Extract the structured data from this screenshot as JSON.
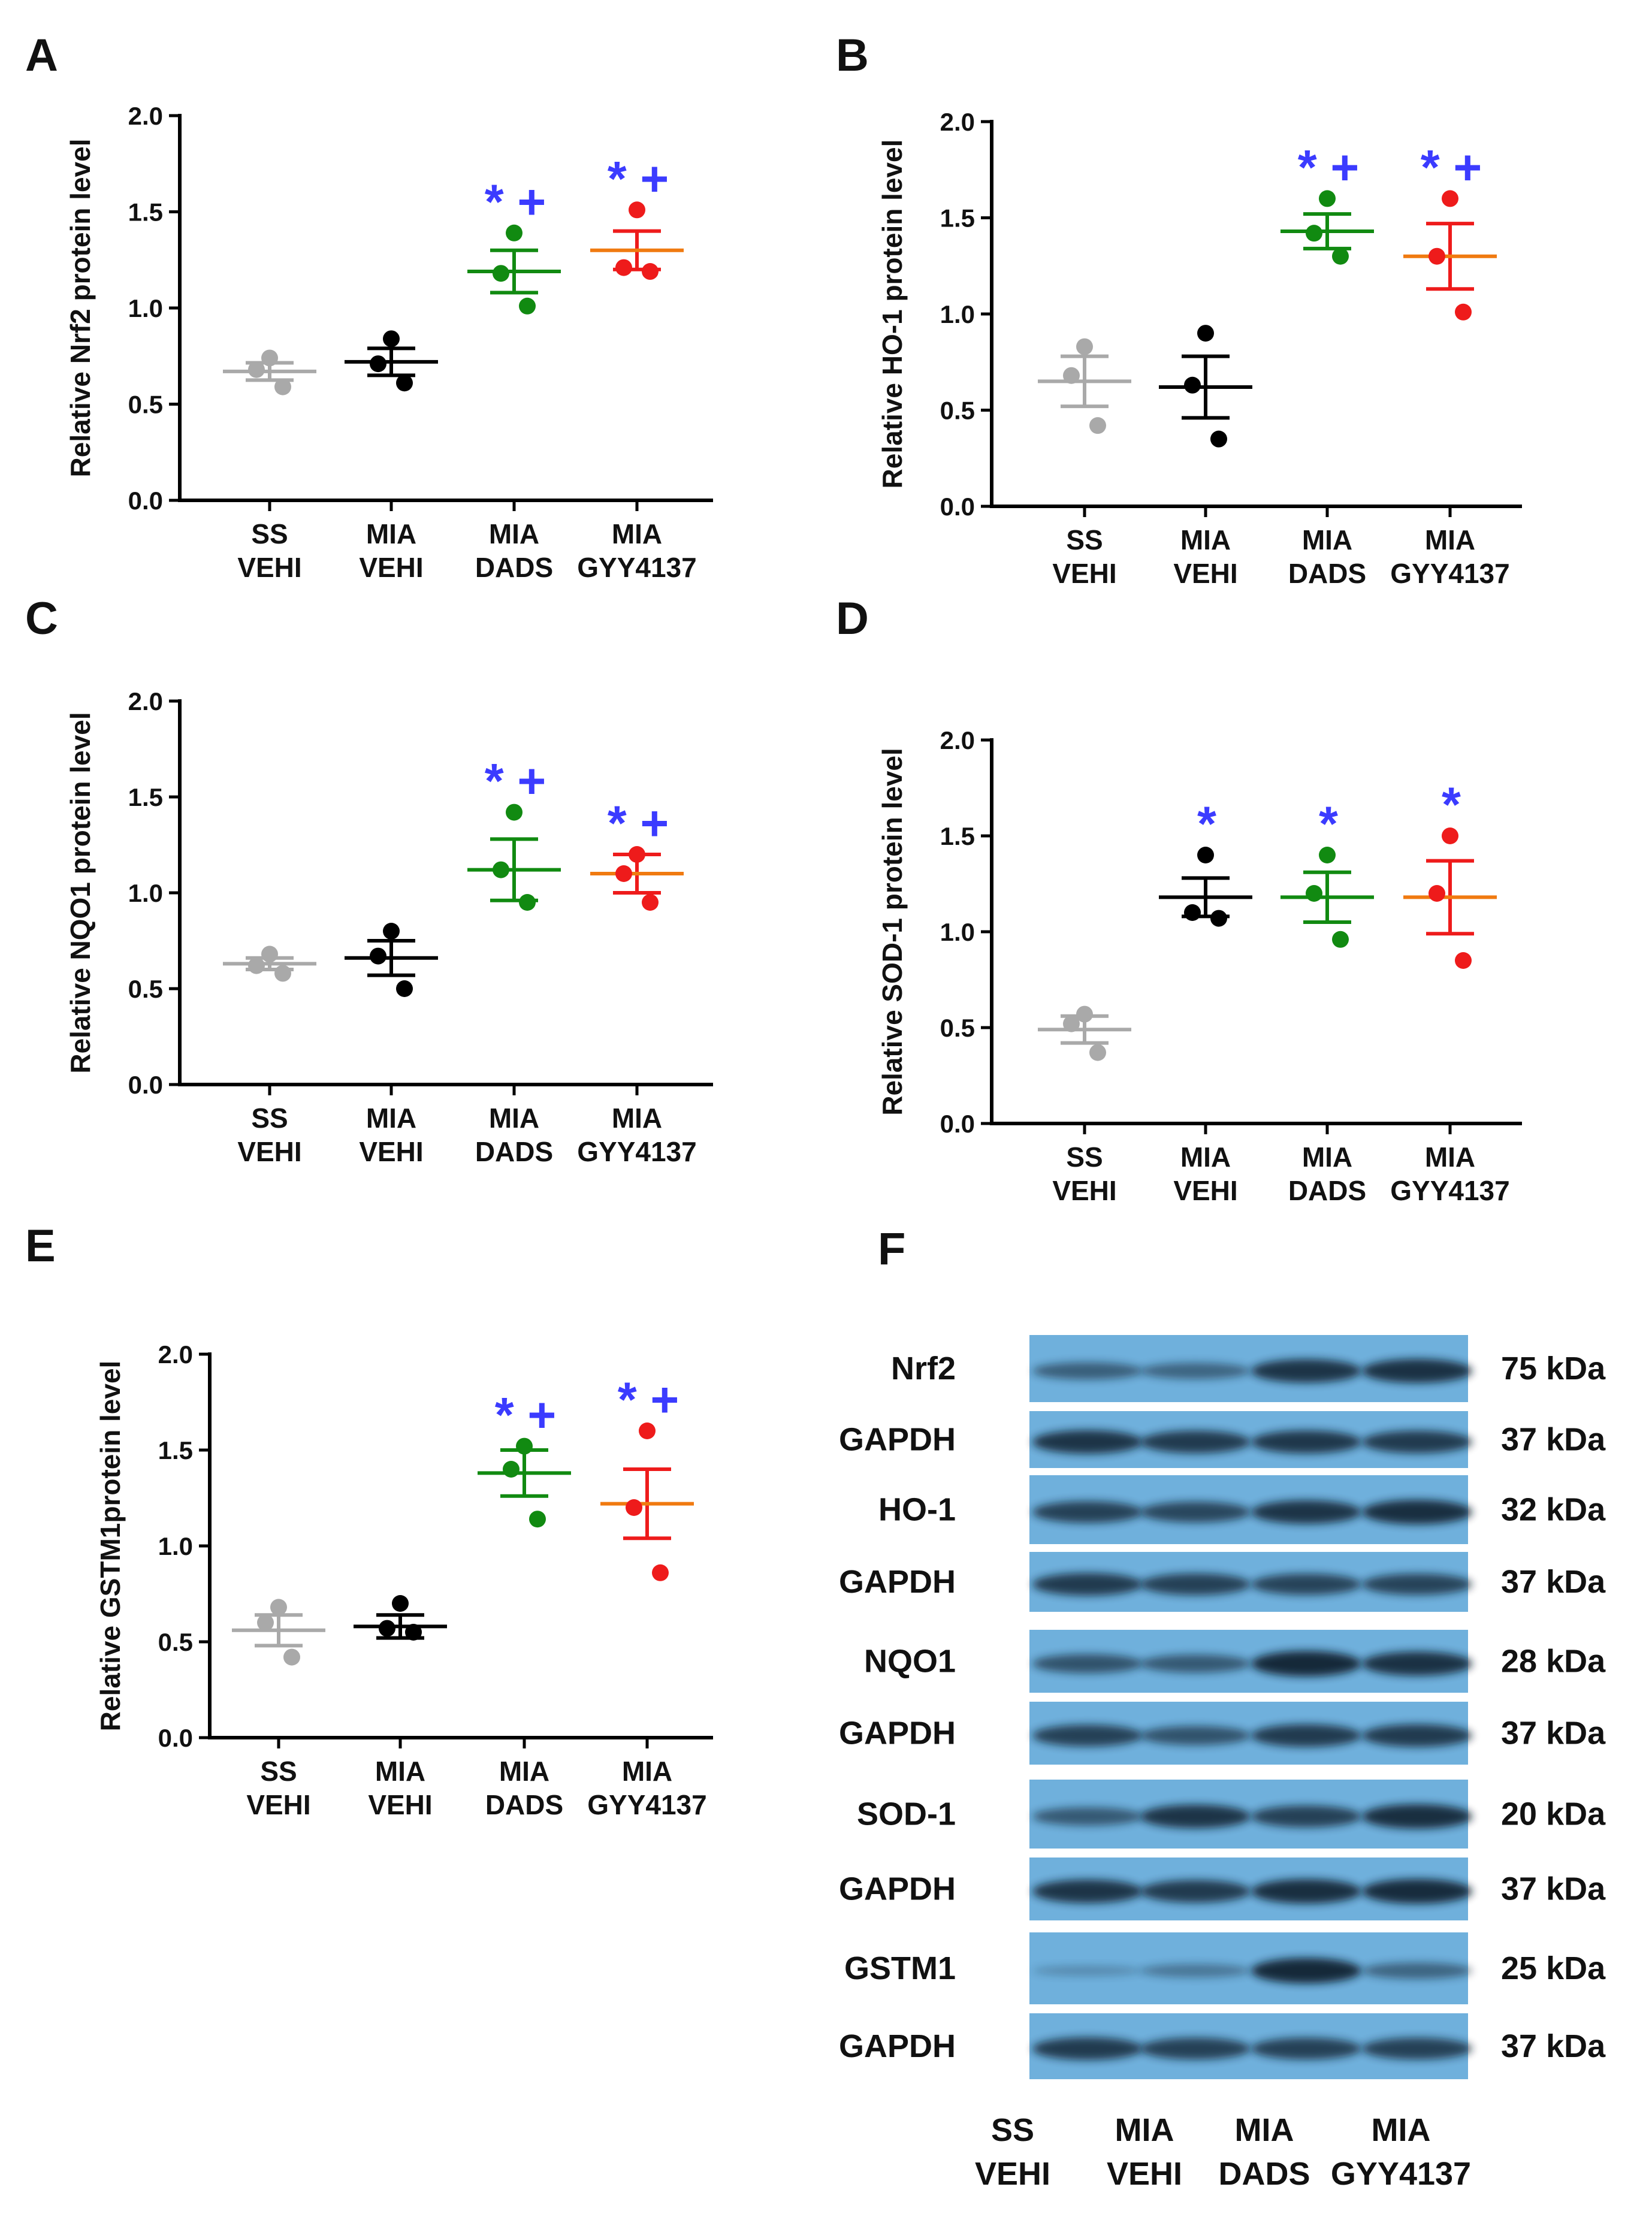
{
  "colors": {
    "SS VEHI": "#a9a9a9",
    "MIA VEHI": "#000000",
    "MIA DADS": "#118a11",
    "MIA GYY4137": "#ee1b1b",
    "mean_GYY4137": "#f07a10",
    "significance": "#3b3bff",
    "blot_background": "#6fb0dc"
  },
  "chart_data": [
    {
      "panel": "A",
      "type": "scatter",
      "ylabel": "Relative Nrf2 protein level",
      "ylim": [
        0,
        2.0
      ],
      "yticks": [
        "0.0",
        "0.5",
        "1.0",
        "1.5",
        "2.0"
      ],
      "groups": [
        {
          "line1": "SS",
          "line2": "VEHI",
          "key": "SS VEHI",
          "points": [
            0.74,
            0.68,
            0.59
          ],
          "mean": 0.67,
          "sem": 0.045,
          "sig": ""
        },
        {
          "line1": "MIA",
          "line2": "VEHI",
          "key": "MIA VEHI",
          "points": [
            0.84,
            0.71,
            0.61
          ],
          "mean": 0.72,
          "sem": 0.07,
          "sig": ""
        },
        {
          "line1": "MIA",
          "line2": "DADS",
          "key": "MIA DADS",
          "points": [
            1.39,
            1.18,
            1.01
          ],
          "mean": 1.19,
          "sem": 0.11,
          "sig": "* +"
        },
        {
          "line1": "MIA",
          "line2": "GYY4137",
          "key": "MIA GYY4137",
          "points": [
            1.51,
            1.21,
            1.19
          ],
          "mean": 1.3,
          "sem": 0.1,
          "sig": "* +"
        }
      ]
    },
    {
      "panel": "B",
      "type": "scatter",
      "ylabel": "Relative HO-1 protein level",
      "ylim": [
        0,
        2.0
      ],
      "yticks": [
        "0.0",
        "0.5",
        "1.0",
        "1.5",
        "2.0"
      ],
      "groups": [
        {
          "line1": "SS",
          "line2": "VEHI",
          "key": "SS VEHI",
          "points": [
            0.83,
            0.68,
            0.42
          ],
          "mean": 0.65,
          "sem": 0.13,
          "sig": ""
        },
        {
          "line1": "MIA",
          "line2": "VEHI",
          "key": "MIA VEHI",
          "points": [
            0.9,
            0.63,
            0.35
          ],
          "mean": 0.62,
          "sem": 0.16,
          "sig": ""
        },
        {
          "line1": "MIA",
          "line2": "DADS",
          "key": "MIA DADS",
          "points": [
            1.6,
            1.42,
            1.3
          ],
          "mean": 1.43,
          "sem": 0.09,
          "sig": "* +"
        },
        {
          "line1": "MIA",
          "line2": "GYY4137",
          "key": "MIA GYY4137",
          "points": [
            1.6,
            1.3,
            1.01
          ],
          "mean": 1.3,
          "sem": 0.17,
          "sig": "* +"
        }
      ]
    },
    {
      "panel": "C",
      "type": "scatter",
      "ylabel": "Relative NQO1 protein level",
      "ylim": [
        0,
        2.0
      ],
      "yticks": [
        "0.0",
        "0.5",
        "1.0",
        "1.5",
        "2.0"
      ],
      "groups": [
        {
          "line1": "SS",
          "line2": "VEHI",
          "key": "SS VEHI",
          "points": [
            0.68,
            0.62,
            0.58
          ],
          "mean": 0.63,
          "sem": 0.03,
          "sig": ""
        },
        {
          "line1": "MIA",
          "line2": "VEHI",
          "key": "MIA VEHI",
          "points": [
            0.8,
            0.67,
            0.5
          ],
          "mean": 0.66,
          "sem": 0.09,
          "sig": ""
        },
        {
          "line1": "MIA",
          "line2": "DADS",
          "key": "MIA DADS",
          "points": [
            1.42,
            1.12,
            0.95
          ],
          "mean": 1.12,
          "sem": 0.16,
          "sig": "* +"
        },
        {
          "line1": "MIA",
          "line2": "GYY4137",
          "key": "MIA GYY4137",
          "points": [
            1.2,
            1.1,
            0.95
          ],
          "mean": 1.1,
          "sem": 0.1,
          "sig": "* +"
        }
      ]
    },
    {
      "panel": "D",
      "type": "scatter",
      "ylabel": "Relative SOD-1 protein level",
      "ylim": [
        0,
        2.0
      ],
      "yticks": [
        "0.0",
        "0.5",
        "1.0",
        "1.5",
        "2.0"
      ],
      "groups": [
        {
          "line1": "SS",
          "line2": "VEHI",
          "key": "SS VEHI",
          "points": [
            0.57,
            0.52,
            0.37
          ],
          "mean": 0.49,
          "sem": 0.07,
          "sig": ""
        },
        {
          "line1": "MIA",
          "line2": "VEHI",
          "key": "MIA VEHI",
          "points": [
            1.4,
            1.1,
            1.07
          ],
          "mean": 1.18,
          "sem": 0.1,
          "sig": "*"
        },
        {
          "line1": "MIA",
          "line2": "DADS",
          "key": "MIA DADS",
          "points": [
            1.4,
            1.2,
            0.96
          ],
          "mean": 1.18,
          "sem": 0.13,
          "sig": "*"
        },
        {
          "line1": "MIA",
          "line2": "GYY4137",
          "key": "MIA GYY4137",
          "points": [
            1.5,
            1.2,
            0.85
          ],
          "mean": 1.18,
          "sem": 0.19,
          "sig": "*"
        }
      ]
    },
    {
      "panel": "E",
      "type": "scatter",
      "ylabel": "Relative GSTM1protein level",
      "ylim": [
        0,
        2.0
      ],
      "yticks": [
        "0.0",
        "0.5",
        "1.0",
        "1.5",
        "2.0"
      ],
      "groups": [
        {
          "line1": "SS",
          "line2": "VEHI",
          "key": "SS VEHI",
          "points": [
            0.68,
            0.6,
            0.42
          ],
          "mean": 0.56,
          "sem": 0.08,
          "sig": ""
        },
        {
          "line1": "MIA",
          "line2": "VEHI",
          "key": "MIA VEHI",
          "points": [
            0.7,
            0.57,
            0.55
          ],
          "mean": 0.58,
          "sem": 0.06,
          "sig": ""
        },
        {
          "line1": "MIA",
          "line2": "DADS",
          "key": "MIA DADS",
          "points": [
            1.52,
            1.4,
            1.14
          ],
          "mean": 1.38,
          "sem": 0.12,
          "sig": "* +"
        },
        {
          "line1": "MIA",
          "line2": "GYY4137",
          "key": "MIA GYY4137",
          "points": [
            1.6,
            1.2,
            0.86
          ],
          "mean": 1.22,
          "sem": 0.18,
          "sig": "* +"
        }
      ]
    }
  ],
  "blot": {
    "panel": "F",
    "rows": [
      {
        "protein": "Nrf2",
        "kda": "75 kDa",
        "intensity": [
          0.5,
          0.45,
          0.85,
          0.88
        ]
      },
      {
        "protein": "GAPDH",
        "kda": "37 kDa",
        "intensity": [
          0.85,
          0.8,
          0.82,
          0.8
        ]
      },
      {
        "protein": "HO-1",
        "kda": "32 kDa",
        "intensity": [
          0.75,
          0.7,
          0.85,
          0.9
        ]
      },
      {
        "protein": "GAPDH",
        "kda": "37 kDa",
        "intensity": [
          0.8,
          0.75,
          0.72,
          0.72
        ]
      },
      {
        "protein": "NQO1",
        "kda": "28 kDa",
        "intensity": [
          0.6,
          0.55,
          0.95,
          0.88
        ]
      },
      {
        "protein": "GAPDH",
        "kda": "37 kDa",
        "intensity": [
          0.75,
          0.6,
          0.8,
          0.8
        ]
      },
      {
        "protein": "SOD-1",
        "kda": "20 kDa",
        "intensity": [
          0.55,
          0.85,
          0.75,
          0.9
        ]
      },
      {
        "protein": "GAPDH",
        "kda": "37 kDa",
        "intensity": [
          0.85,
          0.8,
          0.9,
          0.92
        ]
      },
      {
        "protein": "GSTM1",
        "kda": "25 kDa",
        "intensity": [
          0.12,
          0.3,
          0.95,
          0.45
        ]
      },
      {
        "protein": "GAPDH",
        "kda": "37 kDa",
        "intensity": [
          0.8,
          0.75,
          0.75,
          0.75
        ]
      }
    ],
    "lanes": [
      {
        "line1": "SS",
        "line2": "VEHI"
      },
      {
        "line1": "MIA",
        "line2": "VEHI"
      },
      {
        "line1": "MIA",
        "line2": "DADS"
      },
      {
        "line1": "MIA",
        "line2": "GYY4137"
      }
    ]
  }
}
